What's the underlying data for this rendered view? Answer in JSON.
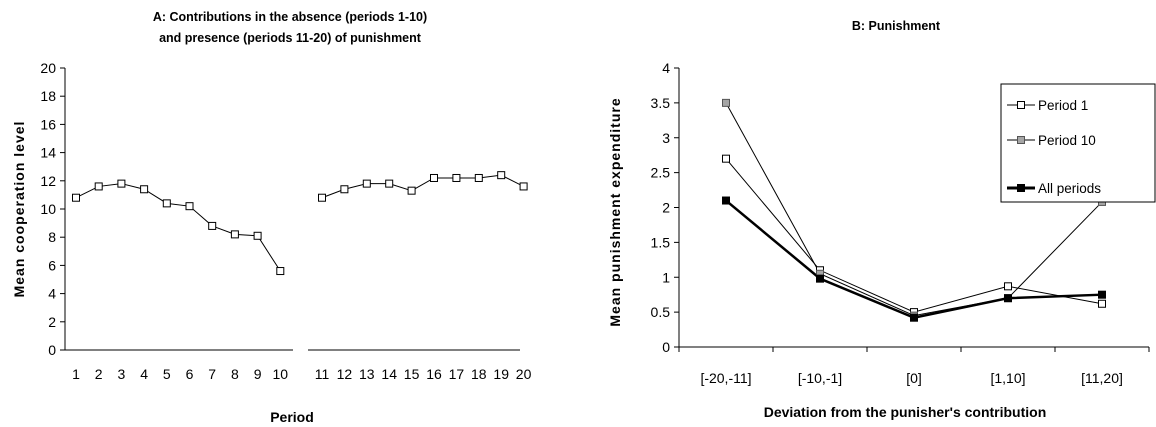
{
  "chart_data": [
    {
      "type": "line",
      "title": "A: Contributions in the absence (periods 1-10)",
      "title_line2": "and presence (periods 11-20) of punishment",
      "xlabel": "Period",
      "ylabel": "Mean cooperation level",
      "ylim": [
        0,
        20
      ],
      "yticks": [
        0,
        2,
        4,
        6,
        8,
        10,
        12,
        14,
        16,
        18,
        20
      ],
      "xticks": [
        1,
        2,
        3,
        4,
        5,
        6,
        7,
        8,
        9,
        10,
        11,
        12,
        13,
        14,
        15,
        16,
        17,
        18,
        19,
        20
      ],
      "grid": false,
      "segments": [
        {
          "x": [
            1,
            2,
            3,
            4,
            5,
            6,
            7,
            8,
            9,
            10
          ],
          "values": [
            10.8,
            11.6,
            11.8,
            11.4,
            10.4,
            10.2,
            8.8,
            8.2,
            8.1,
            5.6
          ]
        },
        {
          "x": [
            11,
            12,
            13,
            14,
            15,
            16,
            17,
            18,
            19,
            20
          ],
          "values": [
            10.8,
            11.4,
            11.8,
            11.8,
            11.3,
            12.2,
            12.2,
            12.2,
            12.4,
            11.6
          ]
        }
      ],
      "marker": "open-square",
      "color": "#000000"
    },
    {
      "type": "line",
      "title": "B: Punishment",
      "xlabel": "Deviation from the punisher's contribution",
      "ylabel": "Mean punishment expenditure",
      "categories": [
        "[-20,-11]",
        "[-10,-1]",
        "[0]",
        "[1,10]",
        "[11,20]"
      ],
      "ylim": [
        0,
        4
      ],
      "yticks": [
        "0",
        "0.5",
        "1",
        "1.5",
        "2",
        "2.5",
        "3",
        "3.5",
        "4"
      ],
      "grid": false,
      "legend_position": "top-right",
      "series": [
        {
          "name": "Period 1",
          "values": [
            2.7,
            1.1,
            0.5,
            0.87,
            0.62
          ],
          "marker_fill": "#ffffff",
          "line_width": 1
        },
        {
          "name": "Period 10",
          "values": [
            3.5,
            1.05,
            0.45,
            0.7,
            2.08
          ],
          "marker_fill": "#a6a6a6",
          "line_width": 1
        },
        {
          "name": "All periods",
          "values": [
            2.1,
            0.98,
            0.42,
            0.7,
            0.75
          ],
          "marker_fill": "#000000",
          "line_width": 2.5
        }
      ]
    }
  ]
}
